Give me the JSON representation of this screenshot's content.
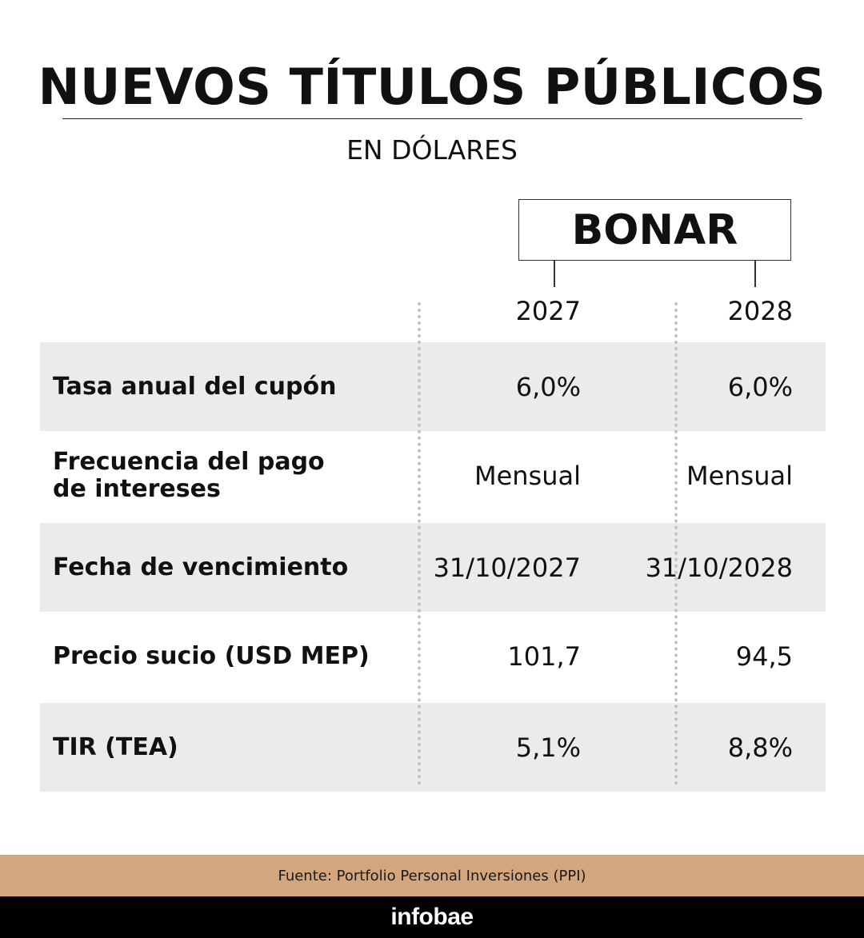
{
  "header": {
    "title": "NUEVOS TÍTULOS PÚBLICOS",
    "subtitle": "EN DÓLARES"
  },
  "table": {
    "group_label": "BONAR",
    "columns": [
      "2027",
      "2028"
    ],
    "rows": [
      {
        "label": "Tasa anual del cupón",
        "values": [
          "6,0%",
          "6,0%"
        ],
        "shaded": true
      },
      {
        "label": "Frecuencia del pago de intereses",
        "values": [
          "Mensual",
          "Mensual"
        ],
        "shaded": false
      },
      {
        "label": "Fecha de vencimiento",
        "values": [
          "31/10/2027",
          "31/10/2028"
        ],
        "shaded": true
      },
      {
        "label": "Precio sucio (USD MEP)",
        "values": [
          "101,7",
          "94,5"
        ],
        "shaded": false
      },
      {
        "label": "TIR (TEA)",
        "values": [
          "5,1%",
          "8,8%"
        ],
        "shaded": true
      }
    ]
  },
  "footer": {
    "source": "Fuente: Portfolio Personal Inversiones (PPI)",
    "brand": "infobae"
  },
  "colors": {
    "row_shade": "#ebebeb",
    "source_bar": "#d4a67e",
    "brand_bar": "#000000"
  }
}
